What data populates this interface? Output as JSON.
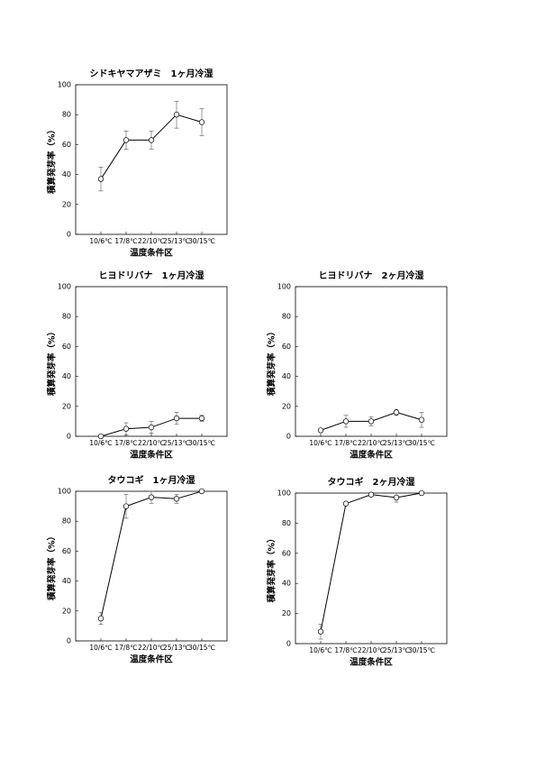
{
  "chart_data": [
    {
      "type": "line",
      "title": "シドキヤマアザミ　1ヶ月冷湿",
      "xlabel": "温度条件区",
      "ylabel": "積算発芽率（%）",
      "categories": [
        "10/6℃",
        "17/8℃",
        "22/10℃",
        "25/13℃",
        "30/15℃"
      ],
      "values": [
        37,
        63,
        63,
        80,
        75
      ],
      "errors": [
        8,
        6,
        6,
        9,
        9
      ],
      "color": "#000000",
      "ylim": [
        0,
        100
      ],
      "yticks": [
        0,
        20,
        40,
        60,
        80,
        100
      ]
    },
    {
      "type": "line",
      "title": "ヒヨドリバナ　1ヶ月冷湿",
      "xlabel": "温度条件区",
      "ylabel": "積算発芽率（%）",
      "categories": [
        "10/6℃",
        "17/8℃",
        "22/10℃",
        "25/13℃",
        "30/15℃"
      ],
      "values": [
        0,
        5,
        6,
        12,
        12
      ],
      "errors": [
        1,
        4,
        4,
        4,
        2
      ],
      "color": "#000000",
      "ylim": [
        0,
        100
      ],
      "yticks": [
        0,
        20,
        40,
        60,
        80,
        100
      ]
    },
    {
      "type": "line",
      "title": "ヒヨドリバナ　2ヶ月冷湿",
      "xlabel": "温度条件区",
      "ylabel": "積算発芽率（%）",
      "categories": [
        "10/6℃",
        "17/8℃",
        "22/10℃",
        "25/13℃",
        "30/15℃"
      ],
      "values": [
        4,
        10,
        10,
        16,
        11
      ],
      "errors": [
        1,
        4,
        3,
        2,
        5
      ],
      "color": "#000000",
      "ylim": [
        0,
        100
      ],
      "yticks": [
        0,
        20,
        40,
        60,
        80,
        100
      ]
    },
    {
      "type": "line",
      "title": "タウコギ　1ヶ月冷湿",
      "xlabel": "温度条件区",
      "ylabel": "積算発芽率（%）",
      "categories": [
        "10/6℃",
        "17/8℃",
        "22/10℃",
        "25/13℃",
        "30/15℃"
      ],
      "values": [
        15,
        90,
        96,
        95,
        100
      ],
      "errors": [
        4,
        8,
        4,
        3,
        1
      ],
      "color": "#000000",
      "ylim": [
        0,
        100
      ],
      "yticks": [
        0,
        20,
        40,
        60,
        80,
        100
      ]
    },
    {
      "type": "line",
      "title": "タウコギ　2ヶ月冷湿",
      "xlabel": "温度条件区",
      "ylabel": "積算発芽率（%）",
      "categories": [
        "10/6℃",
        "17/8℃",
        "22/10℃",
        "25/13℃",
        "30/15℃"
      ],
      "values": [
        8,
        93,
        99,
        97,
        100
      ],
      "errors": [
        5,
        1,
        1,
        3,
        1
      ],
      "color": "#000000",
      "ylim": [
        0,
        100
      ],
      "yticks": [
        0,
        20,
        40,
        60,
        80,
        100
      ]
    }
  ]
}
